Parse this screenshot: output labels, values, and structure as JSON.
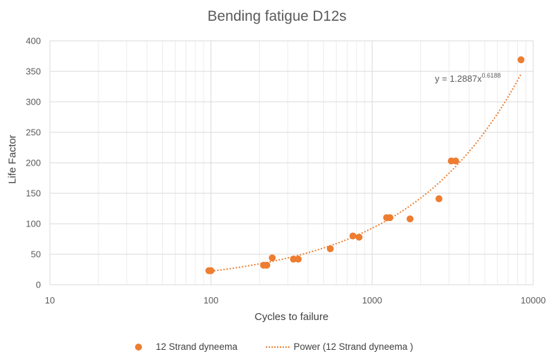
{
  "chart_data": {
    "type": "scatter",
    "title": "Bending fatigue D12s",
    "xlabel": "Cycles to failure",
    "ylabel": "Life Factor",
    "x_scale": "log",
    "xlim": [
      10,
      10000
    ],
    "ylim": [
      0,
      400
    ],
    "x_ticks": [
      "10",
      "100",
      "1000",
      "10000"
    ],
    "y_ticks": [
      "0",
      "50",
      "100",
      "150",
      "200",
      "250",
      "300",
      "350",
      "400"
    ],
    "grid": "on",
    "legend_position": "bottom",
    "series": [
      {
        "name": "12 Strand dyneema",
        "color": "#ed7d31",
        "marker": "circle",
        "points": [
          {
            "x": 97,
            "y": 23
          },
          {
            "x": 100,
            "y": 23
          },
          {
            "x": 212,
            "y": 32
          },
          {
            "x": 222,
            "y": 32
          },
          {
            "x": 240,
            "y": 44
          },
          {
            "x": 325,
            "y": 42
          },
          {
            "x": 348,
            "y": 42
          },
          {
            "x": 550,
            "y": 59
          },
          {
            "x": 760,
            "y": 80
          },
          {
            "x": 830,
            "y": 78
          },
          {
            "x": 1230,
            "y": 110
          },
          {
            "x": 1290,
            "y": 110
          },
          {
            "x": 1720,
            "y": 108
          },
          {
            "x": 2600,
            "y": 141
          },
          {
            "x": 3100,
            "y": 203
          },
          {
            "x": 3300,
            "y": 203
          },
          {
            "x": 8400,
            "y": 369
          }
        ]
      }
    ],
    "trendline": {
      "name": "Power (12 Strand dyneema )",
      "type": "power",
      "coefficient": 1.2887,
      "exponent": 0.6188,
      "x_range": [
        100,
        8400
      ],
      "color": "#ed7d31",
      "style": "dotted",
      "equation_text": "y = 1.2887x",
      "equation_exponent": "0.6188"
    }
  }
}
